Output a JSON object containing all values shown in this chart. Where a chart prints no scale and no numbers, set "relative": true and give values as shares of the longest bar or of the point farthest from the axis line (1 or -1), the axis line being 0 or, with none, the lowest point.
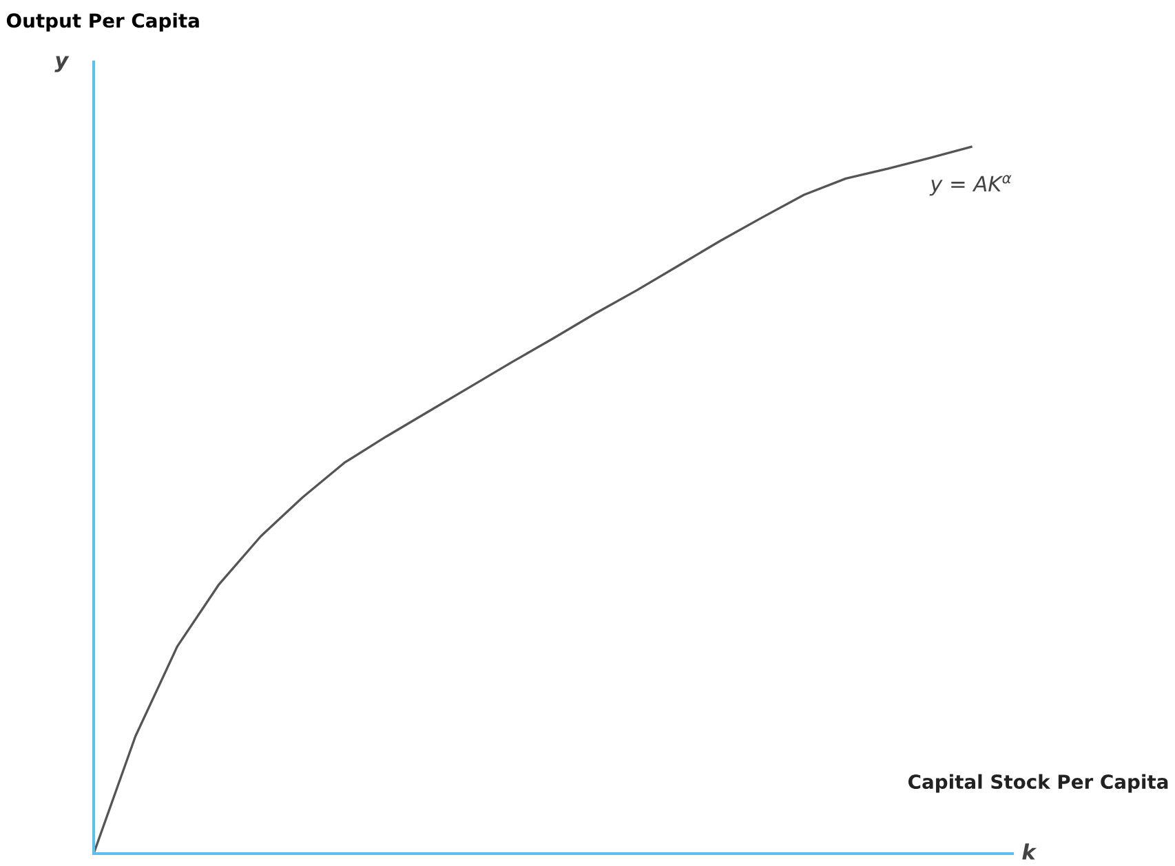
{
  "chart_data": {
    "type": "line",
    "relative": true,
    "title": "Output Per Capita",
    "ylabel": "y",
    "xlabel": "k",
    "annotations": [
      "Capital Stock Per Capita",
      "y = AK$^{α}$"
    ],
    "categories": [
      null,
      null,
      null,
      null,
      null,
      null,
      null,
      null,
      null,
      null,
      null,
      null,
      null,
      null,
      null,
      null,
      null,
      null,
      null,
      null,
      null,
      null
    ],
    "series": [
      {
        "color": "#555555",
        "values": [
          0,
          0.166,
          0.293,
          0.381,
          0.449,
          0.504,
          0.553,
          0.59,
          0.625,
          0.66,
          0.695,
          0.729,
          0.764,
          0.797,
          0.832,
          0.867,
          0.9,
          0.932,
          0.955,
          0.969,
          0.984,
          1.0
        ]
      }
    ],
    "legend": false,
    "marker": "none",
    "line_style": "solid"
  }
}
